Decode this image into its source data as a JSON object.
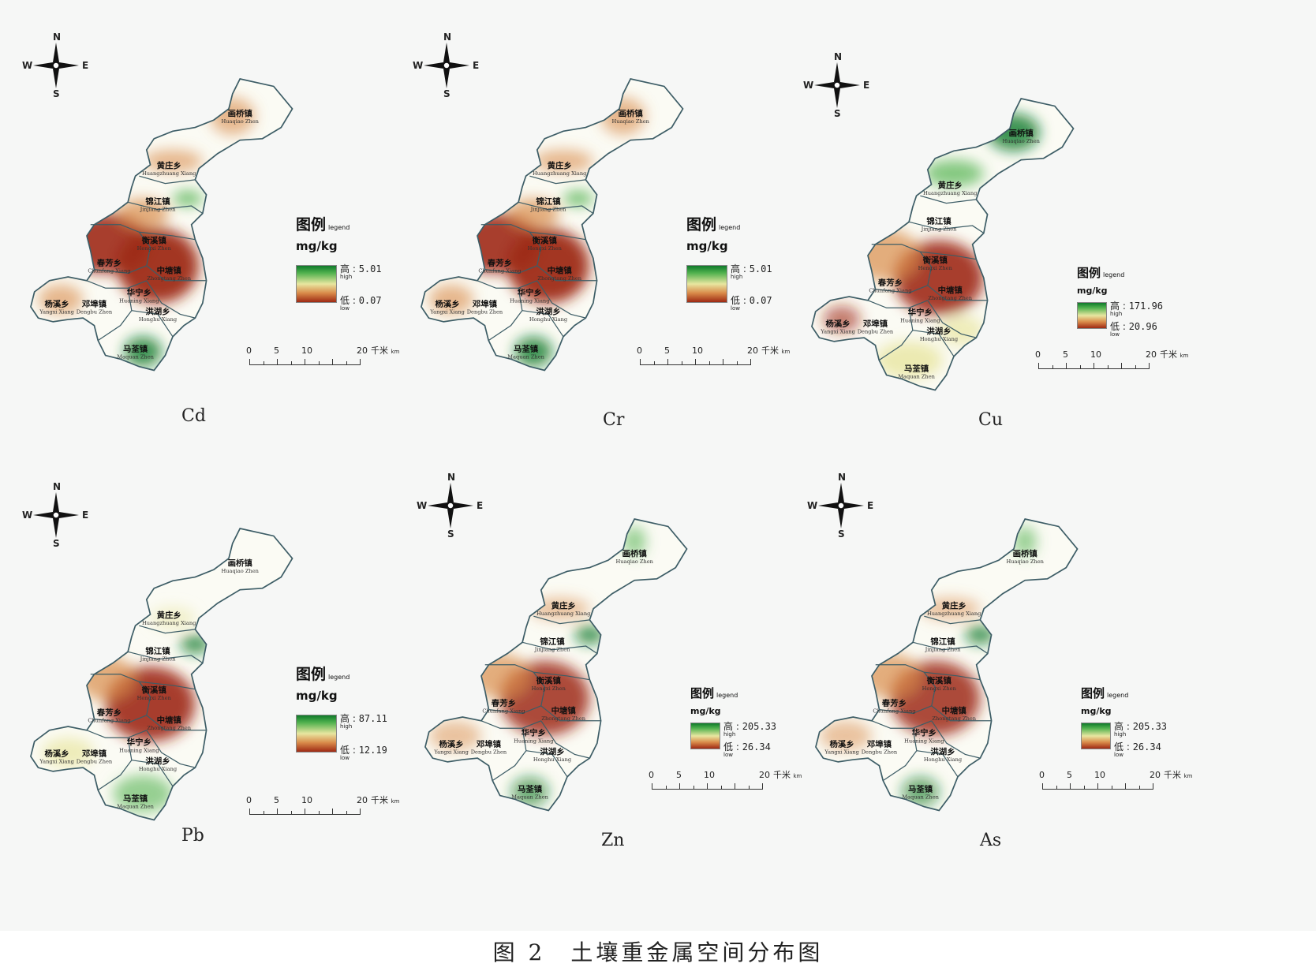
{
  "compass": {
    "n": "N",
    "s": "S",
    "e": "E",
    "w": "W"
  },
  "legend_labels": {
    "title": "图例",
    "title_en": "legend",
    "unit": "mg/kg",
    "high": "高",
    "high_en": "high",
    "low": "低",
    "low_en": "low"
  },
  "scale": {
    "ticks": [
      "0",
      "5",
      "10",
      "20"
    ],
    "unit": "千米",
    "unit_en": "km"
  },
  "towns": [
    {
      "cn": "画桥镇",
      "en": "Huaqiao Zhen"
    },
    {
      "cn": "黄庄乡",
      "en": "Huangzhuang Xiang"
    },
    {
      "cn": "锦江镇",
      "en": "Jinjiang Zhen"
    },
    {
      "cn": "衡溪镇",
      "en": "Hengxi Zhen"
    },
    {
      "cn": "春芳乡",
      "en": "Chunfang Xiang"
    },
    {
      "cn": "中塘镇",
      "en": "Zhongtang Zhen"
    },
    {
      "cn": "华宁乡",
      "en": "Huaning Xiang"
    },
    {
      "cn": "杨溪乡",
      "en": "Yangxi Xiang"
    },
    {
      "cn": "邓埠镇",
      "en": "Dengbu Zhen"
    },
    {
      "cn": "洪湖乡",
      "en": "Honghu Xiang"
    },
    {
      "cn": "马荃镇",
      "en": "Maquan Zhen"
    }
  ],
  "panels": [
    {
      "element": "Cd",
      "high": "5.01",
      "low": "0.07"
    },
    {
      "element": "Cr",
      "high": "5.01",
      "low": "0.07"
    },
    {
      "element": "Cu",
      "high": "171.96",
      "low": "20.96"
    },
    {
      "element": "Pb",
      "high": "87.11",
      "low": "12.19"
    },
    {
      "element": "Zn",
      "high": "205.33",
      "low": "26.34"
    },
    {
      "element": "As",
      "high": "205.33",
      "low": "26.34"
    }
  ],
  "caption": "图 2　土壤重金属空间分布图",
  "colors": {
    "high": "#0f7a2a",
    "mid": "#e8e6a0",
    "low": "#9e2a14",
    "boundary": "#3d5d66"
  }
}
